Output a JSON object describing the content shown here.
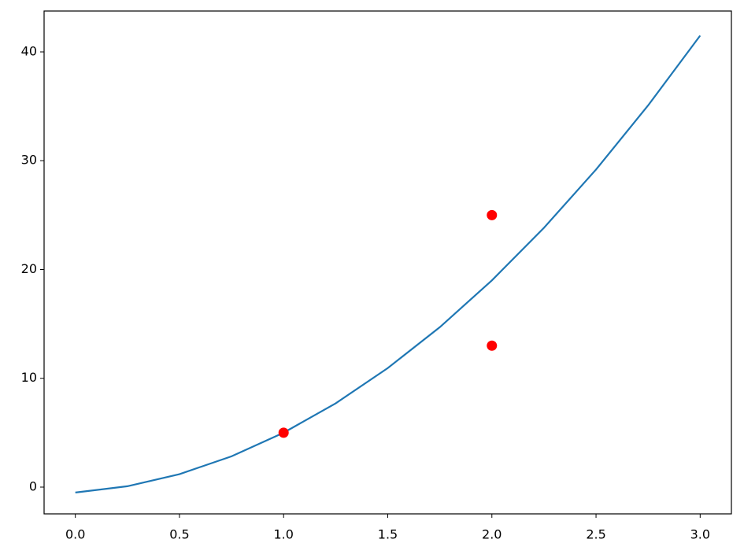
{
  "chart_data": {
    "type": "line",
    "series": [
      {
        "type": "line",
        "color": "#1f77b4",
        "x": [
          0,
          0.25,
          0.5,
          0.75,
          1,
          1.25,
          1.5,
          1.75,
          2,
          2.25,
          2.5,
          2.75,
          3
        ],
        "values": [
          -0.5,
          0.08,
          1.19,
          2.83,
          5.0,
          7.7,
          10.94,
          14.7,
          19.0,
          23.83,
          29.19,
          35.08,
          41.5
        ]
      },
      {
        "type": "scatter",
        "color": "#ff0000",
        "x": [
          1,
          2,
          2
        ],
        "values": [
          5,
          25,
          13
        ]
      }
    ],
    "xlim": [
      -0.15,
      3.15
    ],
    "xticks": [
      {
        "value": 0,
        "label": "0.0"
      },
      0.5,
      {
        "value": 1,
        "label": "1.0"
      },
      1.5,
      {
        "value": 2,
        "label": "2.0"
      },
      2.5,
      {
        "value": 3,
        "label": "3.0"
      }
    ],
    "ylim": [
      -2.46,
      43.76
    ],
    "yticks": [
      0,
      10,
      20,
      30,
      40
    ]
  }
}
